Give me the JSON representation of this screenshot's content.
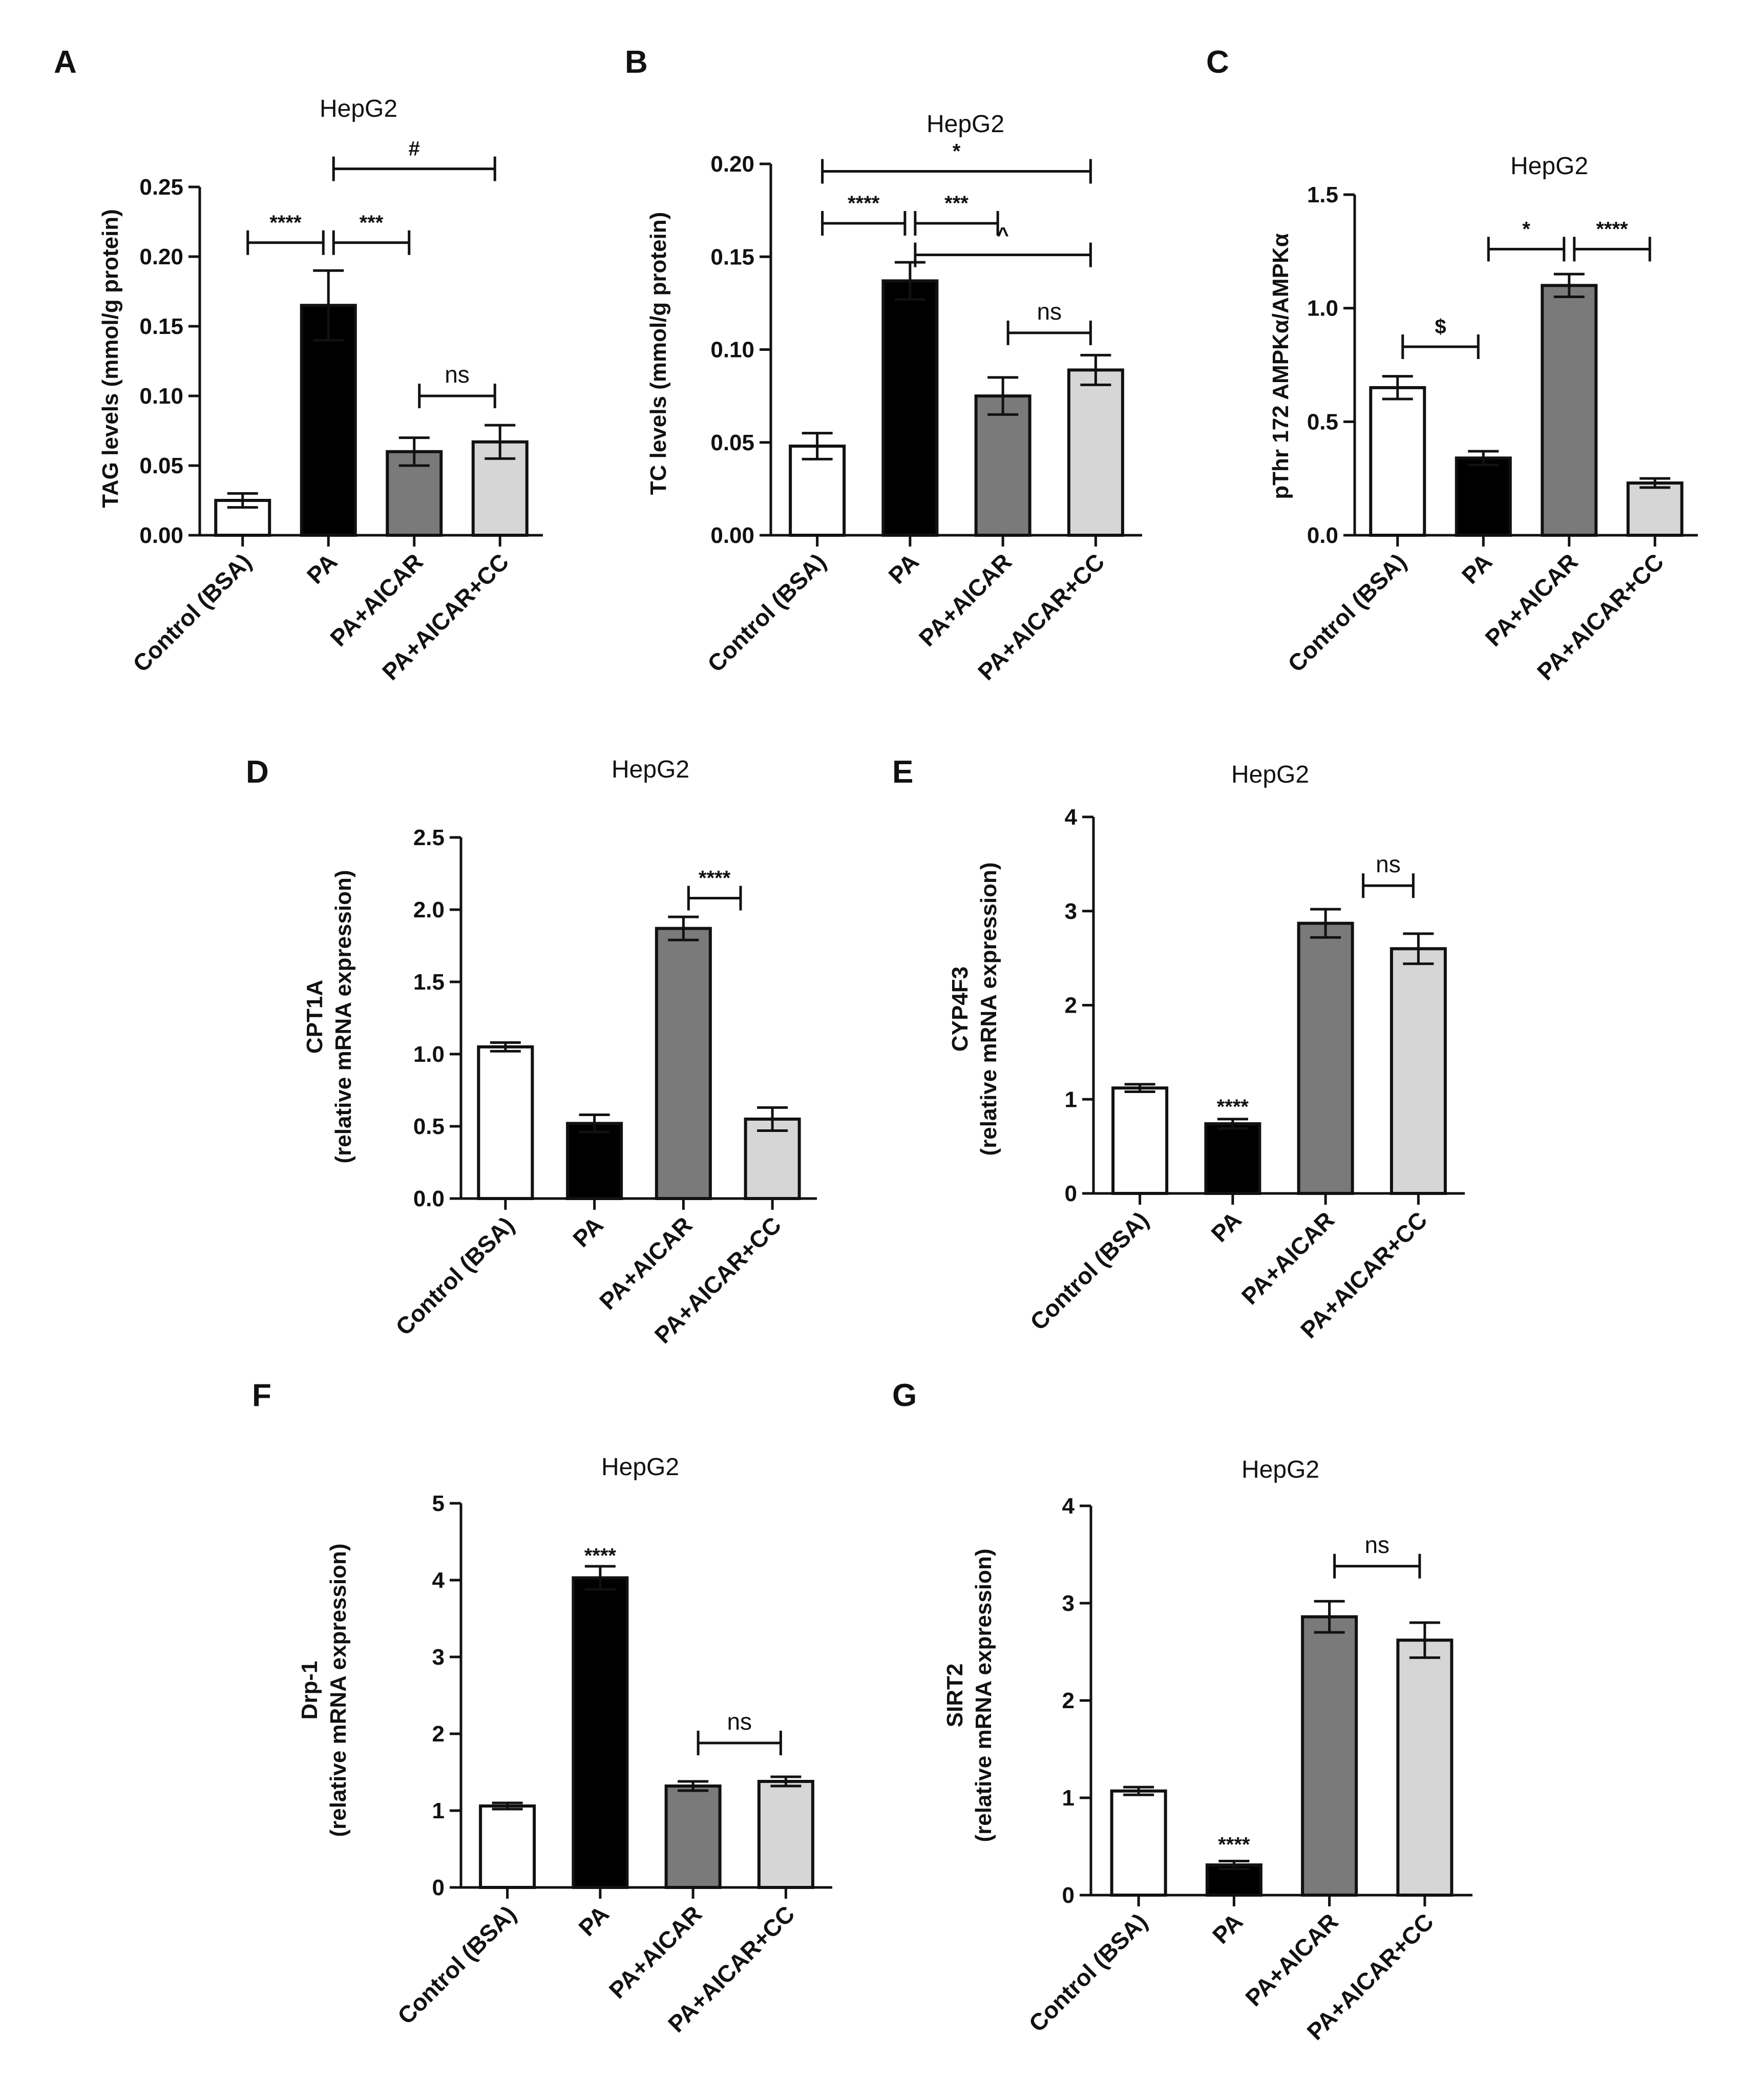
{
  "chart_data": [
    {
      "panel": "A",
      "type": "bar",
      "title": "HepG2",
      "ylabel": [
        "TAG levels (mmol/g protein)"
      ],
      "xlabel": "",
      "categories": [
        "Control (BSA)",
        "PA",
        "PA+AICAR",
        "PA+AICAR+CC"
      ],
      "values": [
        0.025,
        0.165,
        0.06,
        0.067
      ],
      "errors": [
        0.005,
        0.025,
        0.01,
        0.012
      ],
      "colors": [
        "#ffffff",
        "#000000",
        "#7a7a7a",
        "#d6d6d6"
      ],
      "ylim": [
        0,
        0.25
      ],
      "yticks": [
        "0.00",
        "0.05",
        "0.10",
        "0.15",
        "0.20",
        "0.25"
      ],
      "annotations": [
        {
          "from": 0,
          "to": 1,
          "label": "****",
          "y": 0.21
        },
        {
          "from": 1,
          "to": 2,
          "label": "***",
          "y": 0.21
        },
        {
          "from": 1,
          "to": 3,
          "label": "#",
          "y": 0.263
        },
        {
          "from": 2,
          "to": 3,
          "label": "ns",
          "y": 0.1
        }
      ]
    },
    {
      "panel": "B",
      "type": "bar",
      "title": "HepG2",
      "ylabel": [
        "TC levels (mmol/g protein)"
      ],
      "xlabel": "",
      "categories": [
        "Control (BSA)",
        "PA",
        "PA+AICAR",
        "PA+AICAR+CC"
      ],
      "values": [
        0.048,
        0.137,
        0.075,
        0.089
      ],
      "errors": [
        0.007,
        0.01,
        0.01,
        0.008
      ],
      "colors": [
        "#ffffff",
        "#000000",
        "#7a7a7a",
        "#d6d6d6"
      ],
      "ylim": [
        0,
        0.2
      ],
      "yticks": [
        "0.00",
        "0.05",
        "0.10",
        "0.15",
        "0.20"
      ],
      "annotations": [
        {
          "from": 0,
          "to": 3,
          "label": "*",
          "y": 0.196
        },
        {
          "from": 0,
          "to": 1,
          "label": "****",
          "y": 0.168
        },
        {
          "from": 1,
          "to": 2,
          "label": "***",
          "y": 0.168
        },
        {
          "from": 1,
          "to": 3,
          "label": "^",
          "y": 0.151
        },
        {
          "from": 2,
          "to": 3,
          "label": "ns",
          "y": 0.109
        }
      ]
    },
    {
      "panel": "C",
      "type": "bar",
      "title": "HepG2",
      "ylabel": [
        "pThr 172 AMPKα/AMPKα"
      ],
      "xlabel": "",
      "categories": [
        "Control (BSA)",
        "PA",
        "PA+AICAR",
        "PA+AICAR+CC"
      ],
      "values": [
        0.65,
        0.34,
        1.1,
        0.23
      ],
      "errors": [
        0.05,
        0.03,
        0.05,
        0.02
      ],
      "colors": [
        "#ffffff",
        "#000000",
        "#7a7a7a",
        "#d6d6d6"
      ],
      "ylim": [
        0,
        1.5
      ],
      "yticks": [
        "0.0",
        "0.5",
        "1.0",
        "1.5"
      ],
      "annotations": [
        {
          "from": 0,
          "to": 1,
          "label": "$",
          "y": 0.83
        },
        {
          "from": 1,
          "to": 2,
          "label": "*",
          "y": 1.26
        },
        {
          "from": 2,
          "to": 3,
          "label": "****",
          "y": 1.26
        }
      ]
    },
    {
      "panel": "D",
      "type": "bar",
      "title": "HepG2",
      "ylabel": [
        "CPT1A",
        "(relative mRNA expression)"
      ],
      "xlabel": "",
      "categories": [
        "Control (BSA)",
        "PA",
        "PA+AICAR",
        "PA+AICAR+CC"
      ],
      "values": [
        1.05,
        0.52,
        1.87,
        0.55
      ],
      "errors": [
        0.03,
        0.06,
        0.08,
        0.08
      ],
      "colors": [
        "#ffffff",
        "#000000",
        "#7a7a7a",
        "#d6d6d6"
      ],
      "ylim": [
        0,
        2.5
      ],
      "yticks": [
        "0.0",
        "0.5",
        "1.0",
        "1.5",
        "2.0",
        "2.5"
      ],
      "annotations": [
        {
          "from": 2,
          "to": 2.7,
          "label": "****",
          "y": 2.08
        }
      ]
    },
    {
      "panel": "E",
      "type": "bar",
      "title": "HepG2",
      "ylabel": [
        "CYP4F3",
        "(relative mRNA expression)"
      ],
      "xlabel": "",
      "categories": [
        "Control (BSA)",
        "PA",
        "PA+AICAR",
        "PA+AICAR+CC"
      ],
      "values": [
        1.12,
        0.74,
        2.87,
        2.6
      ],
      "errors": [
        0.04,
        0.05,
        0.15,
        0.16
      ],
      "colors": [
        "#ffffff",
        "#000000",
        "#7a7a7a",
        "#d6d6d6"
      ],
      "ylim": [
        0,
        4
      ],
      "yticks": [
        "0",
        "1",
        "2",
        "3",
        "4"
      ],
      "annotations": [
        {
          "from": 2.35,
          "to": 3,
          "label": "ns",
          "y": 3.27
        },
        {
          "at": 1,
          "label": "****",
          "y": 0.85
        }
      ]
    },
    {
      "panel": "F",
      "type": "bar",
      "title": "HepG2",
      "ylabel": [
        "Drp-1",
        "(relative mRNA expression)"
      ],
      "xlabel": "",
      "categories": [
        "Control (BSA)",
        "PA",
        "PA+AICAR",
        "PA+AICAR+CC"
      ],
      "values": [
        1.06,
        4.03,
        1.32,
        1.38
      ],
      "errors": [
        0.04,
        0.15,
        0.06,
        0.06
      ],
      "colors": [
        "#ffffff",
        "#000000",
        "#7a7a7a",
        "#d6d6d6"
      ],
      "ylim": [
        0,
        5
      ],
      "yticks": [
        "0",
        "1",
        "2",
        "3",
        "4",
        "5"
      ],
      "annotations": [
        {
          "at": 1,
          "label": "****",
          "y": 4.23
        },
        {
          "from": 2,
          "to": 3,
          "label": "ns",
          "y": 1.88
        }
      ]
    },
    {
      "panel": "G",
      "type": "bar",
      "title": "HepG2",
      "ylabel": [
        "SIRT2",
        "(relative mRNA expression)"
      ],
      "xlabel": "",
      "categories": [
        "Control (BSA)",
        "PA",
        "PA+AICAR",
        "PA+AICAR+CC"
      ],
      "values": [
        1.07,
        0.31,
        2.86,
        2.62
      ],
      "errors": [
        0.04,
        0.04,
        0.16,
        0.18
      ],
      "colors": [
        "#ffffff",
        "#000000",
        "#7a7a7a",
        "#d6d6d6"
      ],
      "ylim": [
        0,
        4
      ],
      "yticks": [
        "0",
        "1",
        "2",
        "3",
        "4"
      ],
      "annotations": [
        {
          "from": 2,
          "to": 3,
          "label": "ns",
          "y": 3.38
        },
        {
          "at": 1,
          "label": "****",
          "y": 0.45
        }
      ]
    }
  ]
}
